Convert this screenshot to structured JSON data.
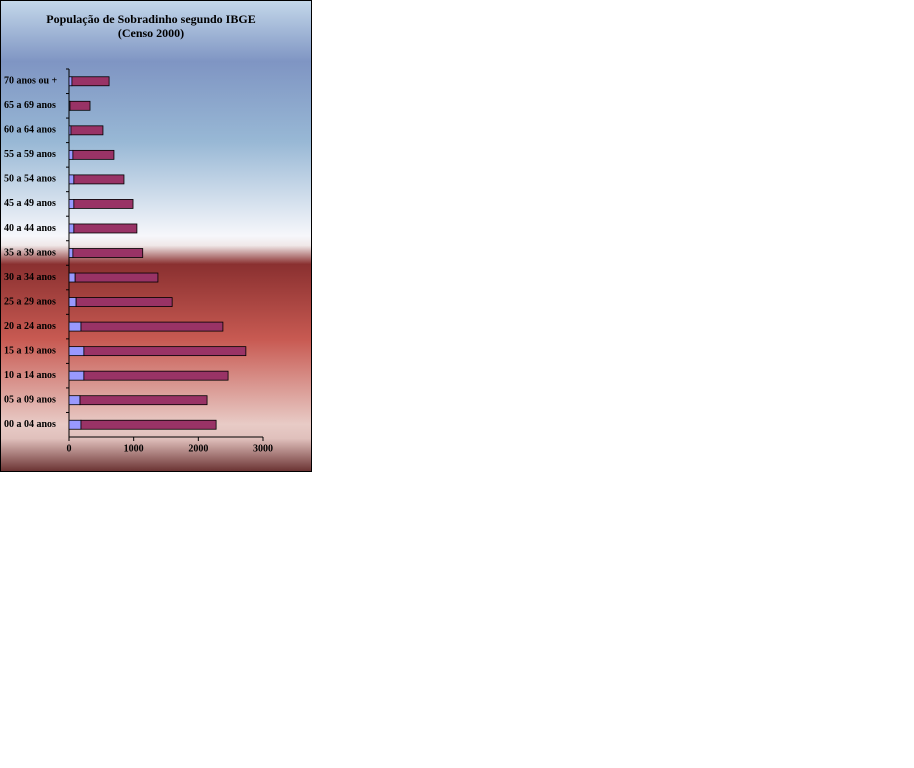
{
  "chart_data": {
    "type": "stacked-bar-horizontal",
    "title": "População  de Sobradinho segundo IBGE",
    "subtitle": "(Censo 2000)",
    "categories": [
      "70 anos ou +",
      "65 a 69 anos",
      "60 a 64 anos",
      "55 a 59 anos",
      "50 a 54 anos",
      "45 a 49 anos",
      "40 a 44 anos",
      "35 a 39 anos",
      "30 a 34 anos",
      "25 a 29 anos",
      "20 a 24 anos",
      "15 a 19 anos",
      "10 a 14 anos",
      "05 a 09 anos",
      "00 a 04 anos"
    ],
    "series": [
      {
        "color": "#9999ff",
        "values": [
          45,
          15,
          30,
          60,
          75,
          75,
          75,
          60,
          95,
          110,
          185,
          230,
          230,
          170,
          185
        ]
      },
      {
        "color": "#993366",
        "values": [
          575,
          310,
          495,
          635,
          775,
          915,
          975,
          1080,
          1280,
          1485,
          2195,
          2505,
          2230,
          1965,
          2090
        ]
      }
    ],
    "xlim": [
      0,
      3000
    ],
    "xticks": [
      0,
      1000,
      2000,
      3000
    ]
  }
}
